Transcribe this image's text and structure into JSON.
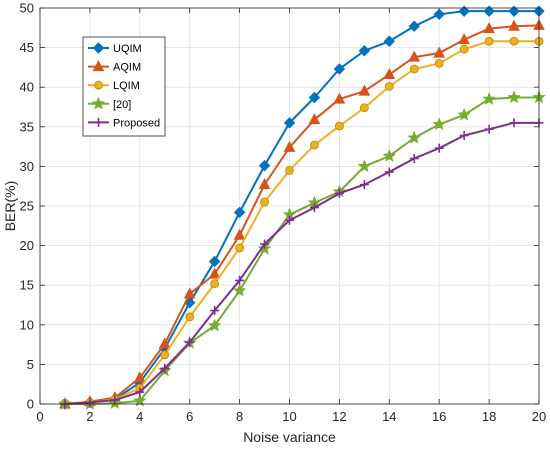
{
  "chart_data": {
    "type": "line",
    "title": "",
    "xlabel": "Noise variance",
    "ylabel": "BER(%)",
    "xlim": [
      0,
      20
    ],
    "ylim": [
      0,
      50
    ],
    "xticks": [
      0,
      2,
      4,
      6,
      8,
      10,
      12,
      14,
      16,
      18,
      20
    ],
    "yticks": [
      0,
      5,
      10,
      15,
      20,
      25,
      30,
      35,
      40,
      45,
      50
    ],
    "grid": true,
    "legend_position": "top-left",
    "x": [
      1,
      2,
      3,
      4,
      5,
      6,
      7,
      8,
      9,
      10,
      11,
      12,
      13,
      14,
      15,
      16,
      17,
      18,
      19,
      20
    ],
    "series": [
      {
        "name": "UQIM",
        "color": "#0072BD",
        "marker": "diamond",
        "values": [
          0,
          0.2,
          0.6,
          2.7,
          7.0,
          12.8,
          18.0,
          24.2,
          30.1,
          35.5,
          38.7,
          42.3,
          44.6,
          45.8,
          47.7,
          49.2,
          49.6,
          49.6,
          49.6,
          49.6
        ]
      },
      {
        "name": "AQIM",
        "color": "#D95319",
        "marker": "triangle",
        "values": [
          0,
          0.3,
          0.8,
          3.3,
          7.6,
          13.9,
          16.4,
          21.3,
          27.7,
          32.4,
          35.9,
          38.5,
          39.5,
          41.6,
          43.8,
          44.3,
          46.0,
          47.4,
          47.7,
          47.8
        ]
      },
      {
        "name": "LQIM",
        "color": "#EDB120",
        "marker": "circle",
        "values": [
          0.1,
          0.2,
          0.6,
          2.0,
          6.2,
          11.0,
          15.2,
          19.7,
          25.5,
          29.5,
          32.7,
          35.1,
          37.4,
          40.1,
          42.3,
          43.0,
          44.8,
          45.8,
          45.8,
          45.8
        ]
      },
      {
        "name": "[20]",
        "color": "#77AC30",
        "marker": "star",
        "values": [
          0,
          0,
          0.1,
          0.4,
          4.2,
          7.7,
          9.9,
          14.3,
          19.6,
          23.9,
          25.4,
          26.8,
          30.0,
          31.3,
          33.6,
          35.3,
          36.5,
          38.5,
          38.7,
          38.7
        ]
      },
      {
        "name": "Proposed",
        "color": "#7E2F8E",
        "marker": "plus",
        "values": [
          0,
          0.2,
          0.5,
          1.5,
          4.5,
          7.8,
          11.8,
          15.6,
          20.2,
          23.2,
          24.8,
          26.6,
          27.7,
          29.3,
          31.0,
          32.3,
          33.9,
          34.7,
          35.5,
          35.5
        ]
      }
    ]
  }
}
